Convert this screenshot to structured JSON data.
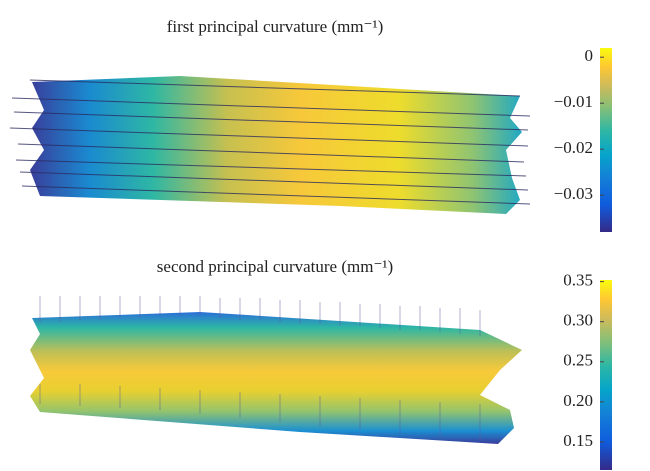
{
  "chart_data": [
    {
      "type": "surface",
      "title": "first principal curvature (mm⁻¹)",
      "ylim": [
        -0.038,
        0.002
      ],
      "yticks": [
        0,
        {
          "value": -0.01,
          "label": "−0.01"
        },
        {
          "value": -0.02,
          "label": "−0.02"
        },
        {
          "value": -0.03,
          "label": "−0.03"
        }
      ]
    },
    {
      "type": "surface",
      "title": "second principal curvature (mm⁻¹)",
      "ylim": [
        0.115,
        0.352
      ],
      "yticks": [
        0.35,
        {
          "value": 0.3,
          "label": "0.30"
        },
        0.25,
        {
          "value": 0.2,
          "label": "0.20"
        },
        0.15
      ]
    }
  ]
}
